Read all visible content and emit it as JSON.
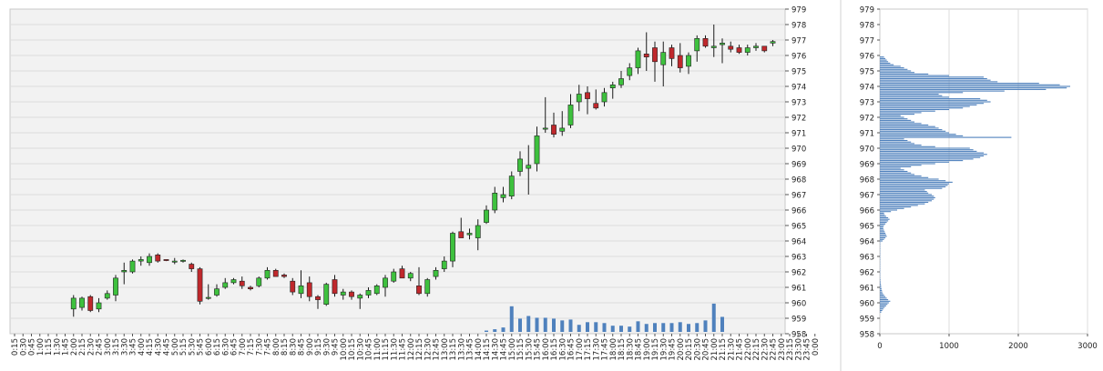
{
  "chart_data": [
    {
      "type": "candlestick",
      "x_tick_labels": [
        "0:15",
        "0:30",
        "0:45",
        "1:00",
        "1:15",
        "1:30",
        "1:45",
        "2:00",
        "2:15",
        "2:30",
        "2:45",
        "3:00",
        "3:15",
        "3:30",
        "3:45",
        "4:00",
        "4:15",
        "4:30",
        "4:45",
        "5:00",
        "5:15",
        "5:30",
        "5:45",
        "6:00",
        "6:15",
        "6:30",
        "6:45",
        "7:00",
        "7:15",
        "7:30",
        "7:45",
        "8:00",
        "8:15",
        "8:30",
        "8:45",
        "9:00",
        "9:15",
        "9:30",
        "9:45",
        "10:00",
        "10:15",
        "10:30",
        "10:45",
        "11:00",
        "11:15",
        "11:30",
        "11:45",
        "12:00",
        "12:15",
        "12:30",
        "12:45",
        "13:00",
        "13:15",
        "13:30",
        "13:45",
        "14:00",
        "14:15",
        "14:30",
        "14:45",
        "15:00",
        "15:15",
        "15:30",
        "15:45",
        "16:00",
        "16:15",
        "16:30",
        "16:45",
        "17:00",
        "17:15",
        "17:30",
        "17:45",
        "18:00",
        "18:15",
        "18:30",
        "18:45",
        "19:00",
        "19:15",
        "19:30",
        "19:45",
        "20:00",
        "20:15",
        "20:30",
        "20:45",
        "21:00",
        "21:15",
        "21:30",
        "21:45",
        "22:00",
        "22:15",
        "22:30",
        "22:45",
        "23:00",
        "23:15",
        "23:30",
        "23:45",
        "0:00"
      ],
      "y_tick_labels": [
        "958",
        "959",
        "960",
        "961",
        "962",
        "963",
        "964",
        "965",
        "966",
        "967",
        "968",
        "969",
        "970",
        "971",
        "972",
        "973",
        "974",
        "975",
        "976",
        "977",
        "978",
        "979"
      ],
      "ylim": [
        958,
        979
      ],
      "candles": [
        {
          "t": "2:00",
          "o": 959.6,
          "h": 960.5,
          "l": 959.1,
          "c": 960.3
        },
        {
          "t": "2:15",
          "o": 959.7,
          "h": 960.4,
          "l": 959.5,
          "c": 960.3
        },
        {
          "t": "2:30",
          "o": 960.4,
          "h": 960.5,
          "l": 959.4,
          "c": 959.5
        },
        {
          "t": "2:45",
          "o": 959.6,
          "h": 960.3,
          "l": 959.4,
          "c": 960.0
        },
        {
          "t": "3:00",
          "o": 960.3,
          "h": 960.8,
          "l": 960.2,
          "c": 960.6
        },
        {
          "t": "3:15",
          "o": 960.5,
          "h": 961.8,
          "l": 960.1,
          "c": 961.6
        },
        {
          "t": "3:30",
          "o": 962.0,
          "h": 962.6,
          "l": 961.2,
          "c": 962.1
        },
        {
          "t": "3:45",
          "o": 962.0,
          "h": 962.8,
          "l": 961.9,
          "c": 962.7
        },
        {
          "t": "4:00",
          "o": 962.7,
          "h": 963.0,
          "l": 962.4,
          "c": 962.8
        },
        {
          "t": "4:15",
          "o": 962.6,
          "h": 963.2,
          "l": 962.4,
          "c": 963.0
        },
        {
          "t": "4:30",
          "o": 963.1,
          "h": 963.2,
          "l": 962.6,
          "c": 962.7
        },
        {
          "t": "4:45",
          "o": 962.8,
          "h": 962.8,
          "l": 962.7,
          "c": 962.75
        },
        {
          "t": "5:00",
          "o": 962.7,
          "h": 962.9,
          "l": 962.5,
          "c": 962.7
        },
        {
          "t": "5:15",
          "o": 962.7,
          "h": 962.8,
          "l": 962.6,
          "c": 962.75
        },
        {
          "t": "5:30",
          "o": 962.5,
          "h": 962.6,
          "l": 962.0,
          "c": 962.2
        },
        {
          "t": "5:45",
          "o": 962.2,
          "h": 962.3,
          "l": 959.9,
          "c": 960.1
        },
        {
          "t": "6:00",
          "o": 960.3,
          "h": 961.2,
          "l": 960.2,
          "c": 960.35
        },
        {
          "t": "6:15",
          "o": 960.5,
          "h": 961.2,
          "l": 960.4,
          "c": 960.9
        },
        {
          "t": "6:30",
          "o": 961.0,
          "h": 961.6,
          "l": 960.9,
          "c": 961.3
        },
        {
          "t": "6:45",
          "o": 961.3,
          "h": 961.6,
          "l": 961.2,
          "c": 961.5
        },
        {
          "t": "7:00",
          "o": 961.4,
          "h": 961.7,
          "l": 960.9,
          "c": 961.1
        },
        {
          "t": "7:15",
          "o": 961.0,
          "h": 961.1,
          "l": 960.8,
          "c": 960.9
        },
        {
          "t": "7:30",
          "o": 961.1,
          "h": 961.7,
          "l": 961.0,
          "c": 961.6
        },
        {
          "t": "7:45",
          "o": 961.6,
          "h": 962.3,
          "l": 961.5,
          "c": 962.1
        },
        {
          "t": "8:00",
          "o": 962.1,
          "h": 962.2,
          "l": 961.7,
          "c": 961.7
        },
        {
          "t": "8:15",
          "o": 961.8,
          "h": 961.9,
          "l": 961.6,
          "c": 961.7
        },
        {
          "t": "8:30",
          "o": 961.4,
          "h": 961.6,
          "l": 960.5,
          "c": 960.7
        },
        {
          "t": "8:45",
          "o": 960.6,
          "h": 962.1,
          "l": 960.3,
          "c": 961.1
        },
        {
          "t": "9:00",
          "o": 961.3,
          "h": 961.7,
          "l": 960.1,
          "c": 960.4
        },
        {
          "t": "9:15",
          "o": 960.4,
          "h": 960.5,
          "l": 959.6,
          "c": 960.2
        },
        {
          "t": "9:30",
          "o": 959.9,
          "h": 961.3,
          "l": 959.8,
          "c": 961.2
        },
        {
          "t": "9:45",
          "o": 961.5,
          "h": 961.8,
          "l": 960.4,
          "c": 960.6
        },
        {
          "t": "10:00",
          "o": 960.5,
          "h": 960.9,
          "l": 960.2,
          "c": 960.7
        },
        {
          "t": "10:15",
          "o": 960.7,
          "h": 960.8,
          "l": 960.2,
          "c": 960.4
        },
        {
          "t": "10:30",
          "o": 960.3,
          "h": 960.6,
          "l": 959.6,
          "c": 960.5
        },
        {
          "t": "10:45",
          "o": 960.5,
          "h": 961.0,
          "l": 960.3,
          "c": 960.8
        },
        {
          "t": "11:00",
          "o": 960.6,
          "h": 961.2,
          "l": 960.5,
          "c": 961.1
        },
        {
          "t": "11:15",
          "o": 961.0,
          "h": 961.8,
          "l": 960.4,
          "c": 961.6
        },
        {
          "t": "11:30",
          "o": 961.4,
          "h": 962.2,
          "l": 961.3,
          "c": 962.0
        },
        {
          "t": "11:45",
          "o": 962.2,
          "h": 962.4,
          "l": 961.6,
          "c": 961.6
        },
        {
          "t": "12:00",
          "o": 961.6,
          "h": 962.0,
          "l": 961.4,
          "c": 961.9
        },
        {
          "t": "12:15",
          "o": 961.1,
          "h": 962.3,
          "l": 960.5,
          "c": 960.6
        },
        {
          "t": "12:30",
          "o": 960.6,
          "h": 961.6,
          "l": 960.4,
          "c": 961.5
        },
        {
          "t": "12:45",
          "o": 961.7,
          "h": 962.3,
          "l": 961.5,
          "c": 962.1
        },
        {
          "t": "13:00",
          "o": 962.2,
          "h": 963.0,
          "l": 962.0,
          "c": 962.7
        },
        {
          "t": "13:15",
          "o": 962.7,
          "h": 964.6,
          "l": 962.3,
          "c": 964.5
        },
        {
          "t": "13:30",
          "o": 964.6,
          "h": 965.5,
          "l": 964.3,
          "c": 964.2
        },
        {
          "t": "13:45",
          "o": 964.4,
          "h": 964.8,
          "l": 964.1,
          "c": 964.5
        },
        {
          "t": "14:00",
          "o": 964.2,
          "h": 965.4,
          "l": 963.4,
          "c": 965.0
        },
        {
          "t": "14:15",
          "o": 965.2,
          "h": 966.3,
          "l": 965.1,
          "c": 966.0
        },
        {
          "t": "14:30",
          "o": 966.0,
          "h": 967.5,
          "l": 965.8,
          "c": 967.1
        },
        {
          "t": "14:45",
          "o": 966.8,
          "h": 967.5,
          "l": 966.5,
          "c": 967.0
        },
        {
          "t": "15:00",
          "o": 966.9,
          "h": 968.5,
          "l": 966.7,
          "c": 968.2
        },
        {
          "t": "15:15",
          "o": 968.5,
          "h": 969.8,
          "l": 968.2,
          "c": 969.3
        },
        {
          "t": "15:30",
          "o": 968.7,
          "h": 970.2,
          "l": 967.0,
          "c": 968.9
        },
        {
          "t": "15:45",
          "o": 969.0,
          "h": 971.4,
          "l": 968.5,
          "c": 970.8
        },
        {
          "t": "16:00",
          "o": 971.3,
          "h": 973.3,
          "l": 971.0,
          "c": 971.3
        },
        {
          "t": "16:15",
          "o": 971.5,
          "h": 972.3,
          "l": 970.7,
          "c": 970.9
        },
        {
          "t": "16:30",
          "o": 971.1,
          "h": 972.4,
          "l": 970.8,
          "c": 971.3
        },
        {
          "t": "16:45",
          "o": 971.5,
          "h": 973.5,
          "l": 971.3,
          "c": 972.8
        },
        {
          "t": "17:00",
          "o": 973.0,
          "h": 974.1,
          "l": 972.4,
          "c": 973.5
        },
        {
          "t": "17:15",
          "o": 973.6,
          "h": 974.0,
          "l": 972.2,
          "c": 973.2
        },
        {
          "t": "17:30",
          "o": 972.9,
          "h": 973.8,
          "l": 972.5,
          "c": 972.6
        },
        {
          "t": "17:45",
          "o": 973.0,
          "h": 973.9,
          "l": 972.7,
          "c": 973.6
        },
        {
          "t": "18:00",
          "o": 973.9,
          "h": 974.3,
          "l": 973.2,
          "c": 974.1
        },
        {
          "t": "18:15",
          "o": 974.1,
          "h": 975.0,
          "l": 973.9,
          "c": 974.5
        },
        {
          "t": "18:30",
          "o": 974.7,
          "h": 975.5,
          "l": 974.4,
          "c": 975.2
        },
        {
          "t": "18:45",
          "o": 975.2,
          "h": 976.5,
          "l": 974.8,
          "c": 976.3
        },
        {
          "t": "19:00",
          "o": 976.1,
          "h": 977.5,
          "l": 975.0,
          "c": 975.9
        },
        {
          "t": "19:15",
          "o": 976.5,
          "h": 976.9,
          "l": 974.3,
          "c": 975.6
        },
        {
          "t": "19:30",
          "o": 975.4,
          "h": 976.9,
          "l": 974.0,
          "c": 976.2
        },
        {
          "t": "19:45",
          "o": 976.5,
          "h": 976.7,
          "l": 975.3,
          "c": 975.8
        },
        {
          "t": "20:00",
          "o": 976.0,
          "h": 976.8,
          "l": 974.9,
          "c": 975.2
        },
        {
          "t": "20:15",
          "o": 975.3,
          "h": 976.2,
          "l": 974.8,
          "c": 976.0
        },
        {
          "t": "20:30",
          "o": 976.3,
          "h": 977.3,
          "l": 975.6,
          "c": 977.1
        },
        {
          "t": "20:45",
          "o": 977.1,
          "h": 977.3,
          "l": 976.5,
          "c": 976.6
        },
        {
          "t": "21:00",
          "o": 976.5,
          "h": 978.0,
          "l": 975.9,
          "c": 976.6
        },
        {
          "t": "21:15",
          "o": 976.7,
          "h": 977.1,
          "l": 975.5,
          "c": 976.8
        },
        {
          "t": "21:30",
          "o": 976.6,
          "h": 976.9,
          "l": 976.2,
          "c": 976.4
        },
        {
          "t": "21:45",
          "o": 976.5,
          "h": 976.7,
          "l": 976.1,
          "c": 976.2
        },
        {
          "t": "22:00",
          "o": 976.2,
          "h": 976.7,
          "l": 976.0,
          "c": 976.5
        },
        {
          "t": "22:15",
          "o": 976.5,
          "h": 976.8,
          "l": 976.3,
          "c": 976.6
        },
        {
          "t": "22:30",
          "o": 976.6,
          "h": 976.6,
          "l": 976.2,
          "c": 976.3
        },
        {
          "t": "22:45",
          "o": 976.8,
          "h": 977.0,
          "l": 976.6,
          "c": 976.9
        }
      ],
      "volume": [
        {
          "t": "14:15",
          "v": 0.15
        },
        {
          "t": "14:30",
          "v": 0.3
        },
        {
          "t": "14:45",
          "v": 0.5
        },
        {
          "t": "15:00",
          "v": 2.9
        },
        {
          "t": "15:15",
          "v": 1.5
        },
        {
          "t": "15:30",
          "v": 1.8
        },
        {
          "t": "15:45",
          "v": 1.6
        },
        {
          "t": "16:00",
          "v": 1.6
        },
        {
          "t": "16:15",
          "v": 1.5
        },
        {
          "t": "16:30",
          "v": 1.3
        },
        {
          "t": "16:45",
          "v": 1.4
        },
        {
          "t": "17:00",
          "v": 0.8
        },
        {
          "t": "17:15",
          "v": 1.1
        },
        {
          "t": "17:30",
          "v": 1.1
        },
        {
          "t": "17:45",
          "v": 1.0
        },
        {
          "t": "18:00",
          "v": 0.7
        },
        {
          "t": "18:15",
          "v": 0.7
        },
        {
          "t": "18:30",
          "v": 0.6
        },
        {
          "t": "18:45",
          "v": 1.2
        },
        {
          "t": "19:00",
          "v": 0.9
        },
        {
          "t": "19:15",
          "v": 1.0
        },
        {
          "t": "19:30",
          "v": 1.0
        },
        {
          "t": "19:45",
          "v": 1.0
        },
        {
          "t": "20:00",
          "v": 1.1
        },
        {
          "t": "20:15",
          "v": 0.9
        },
        {
          "t": "20:30",
          "v": 1.0
        },
        {
          "t": "20:45",
          "v": 1.3
        },
        {
          "t": "21:00",
          "v": 3.2
        },
        {
          "t": "21:15",
          "v": 1.7
        }
      ],
      "volume_scale": {
        "vmax": 3.5
      },
      "grid": true,
      "y_axis_side": "right",
      "colors": {
        "up": "#3ec13e",
        "down": "#c0282c",
        "wick": "#1a1a1a",
        "volume": "#4f81bd",
        "plot_bg": "#f2f2f2",
        "grid": "#dcdcdc"
      }
    },
    {
      "type": "volume-profile",
      "x_tick_labels": [
        "0",
        "1000",
        "2000",
        "3000"
      ],
      "xlim": [
        0,
        3000
      ],
      "y_tick_labels": [
        "958",
        "959",
        "960",
        "961",
        "962",
        "963",
        "964",
        "965",
        "966",
        "967",
        "968",
        "969",
        "970",
        "971",
        "972",
        "973",
        "974",
        "975",
        "976",
        "977",
        "978",
        "979"
      ],
      "ylim": [
        958,
        979
      ],
      "bin_size": 0.1,
      "bin_start": 959.4,
      "values": [
        20,
        35,
        50,
        70,
        90,
        110,
        130,
        150,
        120,
        100,
        80,
        60,
        45,
        35,
        30,
        25,
        20,
        18,
        15,
        12,
        10,
        8,
        6,
        5,
        5,
        5,
        5,
        5,
        5,
        5,
        5,
        5,
        5,
        5,
        5,
        5,
        5,
        5,
        5,
        5,
        5,
        5,
        5,
        5,
        5,
        5,
        40,
        60,
        80,
        100,
        90,
        80,
        70,
        60,
        50,
        50,
        60,
        80,
        100,
        120,
        140,
        120,
        90,
        70,
        60,
        160,
        250,
        350,
        450,
        550,
        650,
        700,
        750,
        780,
        800,
        780,
        750,
        700,
        680,
        650,
        900,
        950,
        980,
        1000,
        1050,
        950,
        850,
        700,
        600,
        500,
        450,
        400,
        350,
        300,
        450,
        600,
        800,
        1000,
        1200,
        1350,
        1450,
        1500,
        1550,
        1500,
        1400,
        1350,
        1300,
        800,
        600,
        500,
        450,
        400,
        350,
        1900,
        1200,
        1100,
        1000,
        950,
        900,
        850,
        800,
        700,
        600,
        500,
        450,
        400,
        350,
        300,
        500,
        600,
        800,
        1000,
        1200,
        1300,
        1400,
        1500,
        1600,
        1550,
        1450,
        1000,
        900,
        850,
        1200,
        1800,
        2400,
        2700,
        2750,
        2600,
        2300,
        1700,
        1600,
        1550,
        1500,
        1000,
        700,
        500,
        450,
        400,
        350,
        300,
        200,
        150,
        120,
        100,
        80,
        60
      ]
    }
  ]
}
